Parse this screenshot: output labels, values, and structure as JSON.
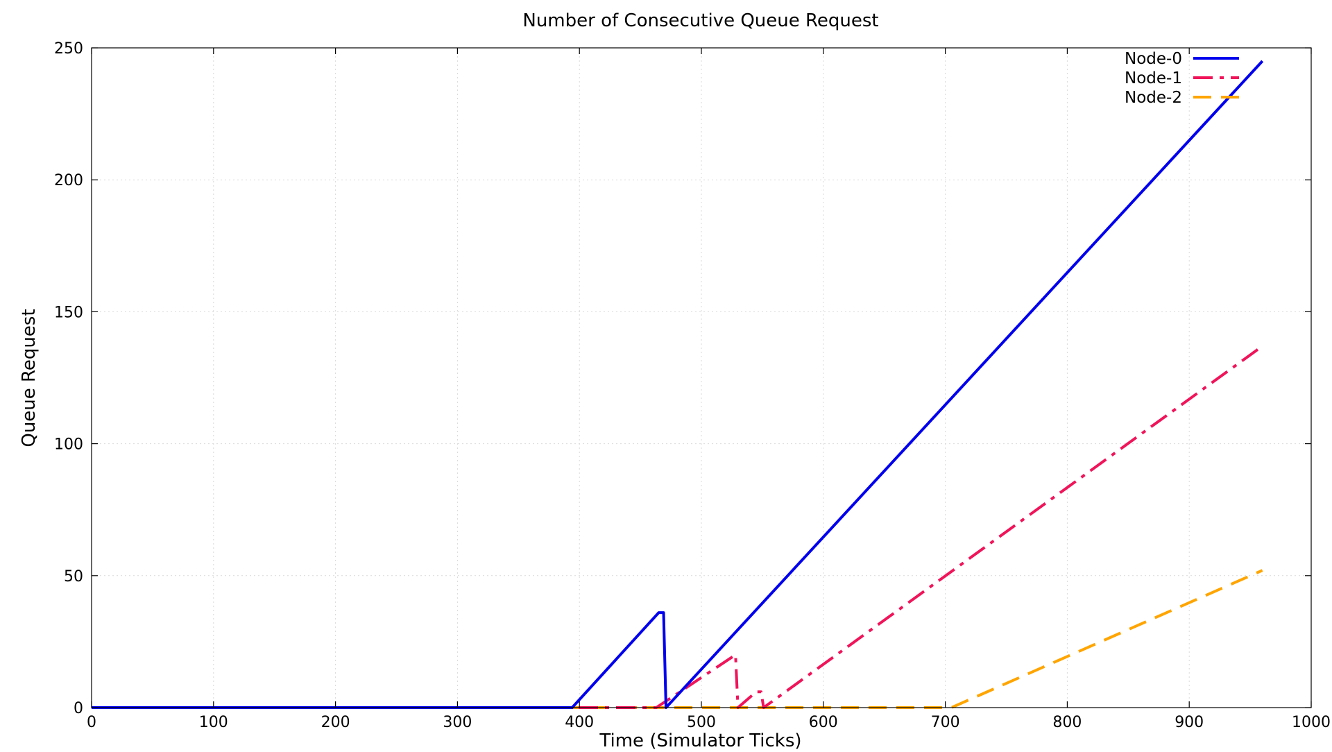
{
  "chart_data": {
    "type": "line",
    "title": "Number of Consecutive Queue Request",
    "xlabel": "Time (Simulator Ticks)",
    "ylabel": "Queue Request",
    "xlim": [
      0,
      1000
    ],
    "ylim": [
      0,
      250
    ],
    "xticks": [
      0,
      100,
      200,
      300,
      400,
      500,
      600,
      700,
      800,
      900,
      1000
    ],
    "yticks": [
      0,
      50,
      100,
      150,
      200,
      250
    ],
    "grid": true,
    "legend_position": "top-right",
    "series": [
      {
        "name": "Node-0",
        "color": "#0000ee",
        "dash": "solid",
        "points": [
          [
            0,
            0
          ],
          [
            394,
            0
          ],
          [
            465,
            36
          ],
          [
            469,
            36
          ],
          [
            471,
            0
          ],
          [
            960,
            245
          ]
        ]
      },
      {
        "name": "Node-1",
        "color": "#f0145a",
        "dash": "dash-dot",
        "points": [
          [
            0,
            0
          ],
          [
            463,
            0
          ],
          [
            528,
            20
          ],
          [
            530,
            0
          ],
          [
            545,
            6
          ],
          [
            549,
            6
          ],
          [
            551,
            0
          ],
          [
            960,
            137
          ]
        ]
      },
      {
        "name": "Node-2",
        "color": "#ffa500",
        "dash": "dash",
        "points": [
          [
            0,
            0
          ],
          [
            705,
            0
          ],
          [
            960,
            52
          ]
        ]
      }
    ]
  }
}
